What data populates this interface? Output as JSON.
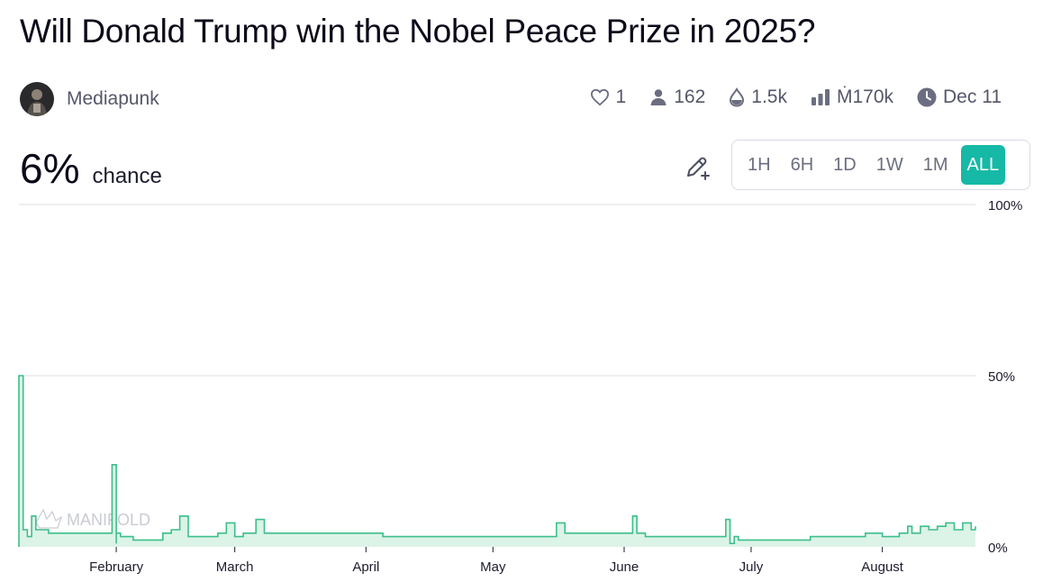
{
  "market": {
    "title": "Will Donald Trump win the Nobel Peace Prize in 2025?",
    "author": "Mediapunk",
    "stats": {
      "likes": "1",
      "traders": "162",
      "liquidity": "1.5k",
      "volume": "Ṁ170k",
      "close_date": "Dec 11"
    },
    "probability": "6%",
    "probability_label": "chance",
    "time_ranges": [
      "1H",
      "6H",
      "1D",
      "1W",
      "1M",
      "ALL"
    ],
    "active_range": "ALL",
    "watermark": "MANIFOLD"
  },
  "colors": {
    "accent": "#16b9a6",
    "line": "#3cbf8a",
    "fill": "#dcf3e7",
    "grid": "#e8e9ee"
  },
  "icons": [
    "heart-icon",
    "user-icon",
    "droplet-icon",
    "bar-chart-icon",
    "clock-icon",
    "pencil-plus-icon"
  ],
  "chart_data": {
    "type": "area",
    "y_ticks": [
      "100%",
      "50%",
      "0%"
    ],
    "ylim": [
      0,
      100
    ],
    "x_ticks": [
      "February",
      "March",
      "April",
      "May",
      "June",
      "July",
      "August"
    ],
    "x_tick_dates": [
      "2025-02-01",
      "2025-03-01",
      "2025-04-01",
      "2025-05-01",
      "2025-06-01",
      "2025-07-01",
      "2025-08-01"
    ],
    "xlim": [
      "2025-01-09",
      "2025-08-23"
    ],
    "series": [
      {
        "x": [
          "2025-01-09",
          "2025-01-09",
          "2025-01-10",
          "2025-01-11",
          "2025-01-12",
          "2025-01-13",
          "2025-01-13",
          "2025-01-14",
          "2025-01-15",
          "2025-01-16",
          "2025-01-17",
          "2025-01-18",
          "2025-01-20",
          "2025-01-22",
          "2025-01-25",
          "2025-01-28",
          "2025-01-30",
          "2025-01-31",
          "2025-02-01",
          "2025-02-01",
          "2025-02-02",
          "2025-02-05",
          "2025-02-08",
          "2025-02-10",
          "2025-02-12",
          "2025-02-14",
          "2025-02-16",
          "2025-02-18",
          "2025-02-20",
          "2025-02-23",
          "2025-02-25",
          "2025-02-27",
          "2025-03-01",
          "2025-03-03",
          "2025-03-06",
          "2025-03-08",
          "2025-03-10",
          "2025-03-12",
          "2025-03-15",
          "2025-03-20",
          "2025-03-25",
          "2025-03-30",
          "2025-04-05",
          "2025-04-10",
          "2025-04-15",
          "2025-04-20",
          "2025-04-25",
          "2025-04-28",
          "2025-05-01",
          "2025-05-05",
          "2025-05-10",
          "2025-05-15",
          "2025-05-16",
          "2025-05-18",
          "2025-05-22",
          "2025-05-28",
          "2025-06-01",
          "2025-06-03",
          "2025-06-04",
          "2025-06-06",
          "2025-06-10",
          "2025-06-15",
          "2025-06-20",
          "2025-06-24",
          "2025-06-25",
          "2025-06-26",
          "2025-06-27",
          "2025-06-28",
          "2025-07-01",
          "2025-07-05",
          "2025-07-10",
          "2025-07-15",
          "2025-07-20",
          "2025-07-25",
          "2025-07-28",
          "2025-08-01",
          "2025-08-05",
          "2025-08-07",
          "2025-08-08",
          "2025-08-10",
          "2025-08-12",
          "2025-08-14",
          "2025-08-16",
          "2025-08-18",
          "2025-08-20",
          "2025-08-22",
          "2025-08-23"
        ],
        "y": [
          0,
          50,
          5,
          3,
          9,
          9,
          5,
          5,
          5,
          4,
          4,
          4,
          4,
          4,
          4,
          4,
          4,
          24,
          1,
          4,
          3,
          2,
          2,
          2,
          4,
          5,
          9,
          3,
          3,
          3,
          4,
          7,
          3,
          4,
          8,
          4,
          4,
          4,
          4,
          4,
          4,
          4,
          3,
          3,
          3,
          3,
          3,
          3,
          3,
          3,
          3,
          3,
          7,
          4,
          4,
          4,
          4,
          9,
          4,
          3,
          3,
          3,
          3,
          3,
          8,
          1,
          3,
          2,
          2,
          2,
          2,
          3,
          3,
          3,
          4,
          3,
          4,
          6,
          4,
          6,
          5,
          6,
          7,
          5,
          7,
          5,
          6
        ]
      }
    ]
  }
}
